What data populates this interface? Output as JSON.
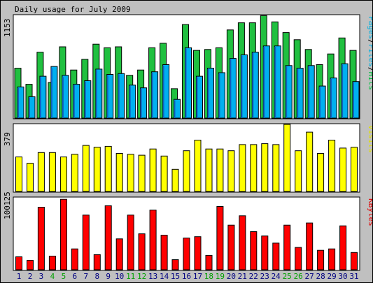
{
  "chart_data": {
    "type": "bar",
    "title": "Daily usage for July 2009",
    "categories": [
      "1",
      "2",
      "3",
      "4",
      "5",
      "6",
      "7",
      "8",
      "9",
      "10",
      "11",
      "12",
      "13",
      "14",
      "15",
      "16",
      "17",
      "18",
      "19",
      "20",
      "21",
      "22",
      "23",
      "24",
      "25",
      "26",
      "27",
      "28",
      "29",
      "30",
      "31"
    ],
    "weekend_days": [
      "4",
      "5",
      "11",
      "12",
      "18",
      "19",
      "25",
      "26"
    ],
    "weekend_label_color": "#00a000",
    "weekday_label_color": "#000080",
    "panels": [
      {
        "id": "hits_pages_files",
        "max_label": "1153",
        "ylim": [
          0,
          1153
        ],
        "legend_parts": [
          {
            "text": "Pages",
            "color": "#00b0e0"
          },
          {
            "text": "/",
            "color": "#000000"
          },
          {
            "text": "Files",
            "color": "#00b0e0"
          },
          {
            "text": "/",
            "color": "#000000"
          },
          {
            "text": "Hits",
            "color": "#00c040"
          }
        ],
        "series": [
          {
            "name": "Hits",
            "color": "#20c040",
            "values": [
              560,
              380,
              740,
              400,
              800,
              540,
              660,
              830,
              790,
              800,
              480,
              540,
              790,
              840,
              330,
              1050,
              760,
              770,
              790,
              990,
              1070,
              1070,
              1150,
              1080,
              960,
              880,
              770,
              600,
              720,
              900,
              760
            ]
          },
          {
            "name": "Files",
            "color": "#00b0f0",
            "values": [
              350,
              240,
              470,
              580,
              480,
              380,
              420,
              550,
              490,
              500,
              370,
              340,
              520,
              600,
              210,
              790,
              470,
              560,
              510,
              670,
              710,
              740,
              810,
              810,
              590,
              560,
              590,
              360,
              450,
              610,
              410
            ]
          },
          {
            "name": "Pages",
            "color": "#1060c0",
            "values": [
              340,
              230,
              460,
              560,
              460,
              370,
              410,
              540,
              480,
              490,
              360,
              330,
              510,
              590,
              200,
              780,
              460,
              550,
              500,
              660,
              700,
              730,
              800,
              800,
              580,
              550,
              580,
              350,
              440,
              600,
              400
            ]
          }
        ]
      },
      {
        "id": "visits",
        "max_label": "379",
        "ylim": [
          0,
          379
        ],
        "legend_parts": [
          {
            "text": "Visits",
            "color": "#e0e000"
          }
        ],
        "series": [
          {
            "name": "Visits",
            "color": "#ffff00",
            "values": [
              195,
              160,
              220,
              220,
              195,
              210,
              260,
              250,
              255,
              215,
              210,
              205,
              240,
              200,
              125,
              230,
              290,
              240,
              240,
              230,
              265,
              265,
              270,
              265,
              379,
              230,
              335,
              215,
              290,
              245,
              250
            ]
          }
        ]
      },
      {
        "id": "kbytes",
        "max_label": "100125",
        "ylim": [
          0,
          100125
        ],
        "legend_parts": [
          {
            "text": "KBytes",
            "color": "#e00000"
          }
        ],
        "series": [
          {
            "name": "KBytes",
            "color": "#ff0000",
            "values": [
              18000,
              13000,
              87000,
              19000,
              98000,
              29000,
              76000,
              21000,
              89000,
              43000,
              76000,
              50000,
              83000,
              48000,
              14000,
              44000,
              46000,
              20000,
              88000,
              62000,
              75000,
              53000,
              47000,
              37000,
              62000,
              31000,
              65000,
              27000,
              29000,
              61000,
              24000
            ]
          }
        ]
      }
    ]
  }
}
